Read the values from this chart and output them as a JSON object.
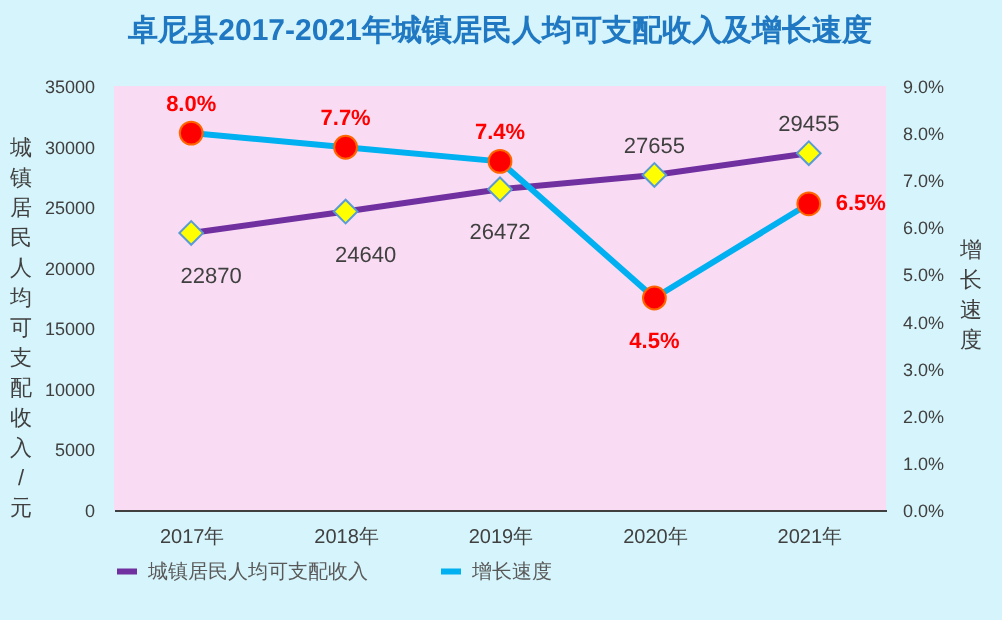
{
  "chart_data": {
    "type": "line",
    "title": "卓尼县2017-2021年城镇居民人均可支配收入及增长速度",
    "ylabel": "城镇居民人均可支配收入/元",
    "y2label": "增长速度",
    "categories": [
      "2017年",
      "2018年",
      "2019年",
      "2020年",
      "2021年"
    ],
    "ylim": [
      0,
      35000
    ],
    "yticks": [
      0,
      5000,
      10000,
      15000,
      20000,
      25000,
      30000,
      35000
    ],
    "y2lim": [
      0,
      9
    ],
    "y2ticks": [
      {
        "value": 0,
        "label": "0.0%"
      },
      {
        "value": 1,
        "label": "1.0%"
      },
      {
        "value": 2,
        "label": "2.0%"
      },
      {
        "value": 3,
        "label": "3.0%"
      },
      {
        "value": 4,
        "label": "4.0%"
      },
      {
        "value": 5,
        "label": "5.0%"
      },
      {
        "value": 6,
        "label": "6.0%"
      },
      {
        "value": 7,
        "label": "7.0%"
      },
      {
        "value": 8,
        "label": "8.0%"
      },
      {
        "value": 9,
        "label": "9.0%"
      }
    ],
    "legend": "bottom",
    "series": [
      {
        "name": "城镇居民人均可支配收入",
        "color": "#7030a0",
        "marker": "diamond",
        "values": [
          22870,
          24640,
          26472,
          27655,
          29455
        ],
        "value_labels": [
          "22870",
          "24640",
          "26472",
          "27655",
          "29455"
        ]
      },
      {
        "name": "增长速度",
        "color": "#00b0f0",
        "marker": "circle",
        "axis": "y2",
        "values": [
          8.0,
          7.7,
          7.4,
          4.5,
          6.5
        ],
        "value_labels": [
          "8.0%",
          "7.7%",
          "7.4%",
          "4.5%",
          "6.5%"
        ]
      }
    ]
  }
}
